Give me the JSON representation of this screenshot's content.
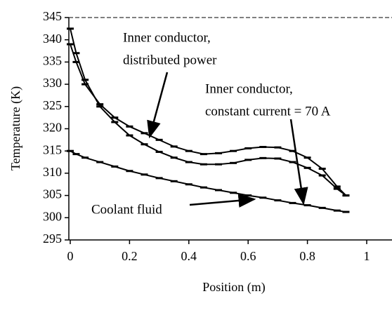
{
  "chart_data": {
    "type": "line",
    "x_label": "Position (m)",
    "y_label": "Temperature (K)",
    "x": [
      0,
      0.02,
      0.05,
      0.1,
      0.15,
      0.2,
      0.25,
      0.3,
      0.35,
      0.4,
      0.45,
      0.5,
      0.55,
      0.6,
      0.65,
      0.7,
      0.75,
      0.8,
      0.85,
      0.9,
      0.93
    ],
    "series": [
      {
        "color": "#000000",
        "values": [
          339,
          335,
          330,
          325.5,
          322.5,
          320.5,
          319,
          317.5,
          316,
          315,
          314.3,
          314.5,
          315,
          315.6,
          315.9,
          315.8,
          315,
          313.5,
          311,
          307,
          305
        ]
      },
      {
        "color": "#000000",
        "values": [
          342.5,
          337,
          331,
          325,
          321.5,
          318.5,
          316.5,
          314.8,
          313.5,
          312.5,
          312,
          312,
          312.3,
          313,
          313.4,
          313.3,
          312.5,
          311.2,
          309.5,
          306.5,
          305
        ]
      },
      {
        "color": "#000000",
        "values": [
          315,
          314.3,
          313.5,
          312.5,
          311.5,
          310.5,
          309.7,
          308.9,
          308.2,
          307.5,
          306.8,
          306.2,
          305.6,
          305,
          304.5,
          303.9,
          303.3,
          302.8,
          302.2,
          301.6,
          301.3
        ]
      }
    ],
    "annotations": [
      {
        "lines": [
          "Inner conductor,",
          "distributed power"
        ]
      },
      {
        "lines": [
          "Inner conductor,",
          "constant current = 70 A"
        ]
      },
      {
        "lines": [
          "Coolant fluid"
        ]
      }
    ],
    "xlim": [
      0,
      1
    ],
    "xticks": [
      0,
      0.2,
      0.4,
      0.6,
      0.8,
      1
    ],
    "ylim": [
      295,
      345
    ],
    "yticks": [
      295,
      300,
      305,
      310,
      315,
      320,
      325,
      330,
      335,
      340,
      345
    ]
  }
}
